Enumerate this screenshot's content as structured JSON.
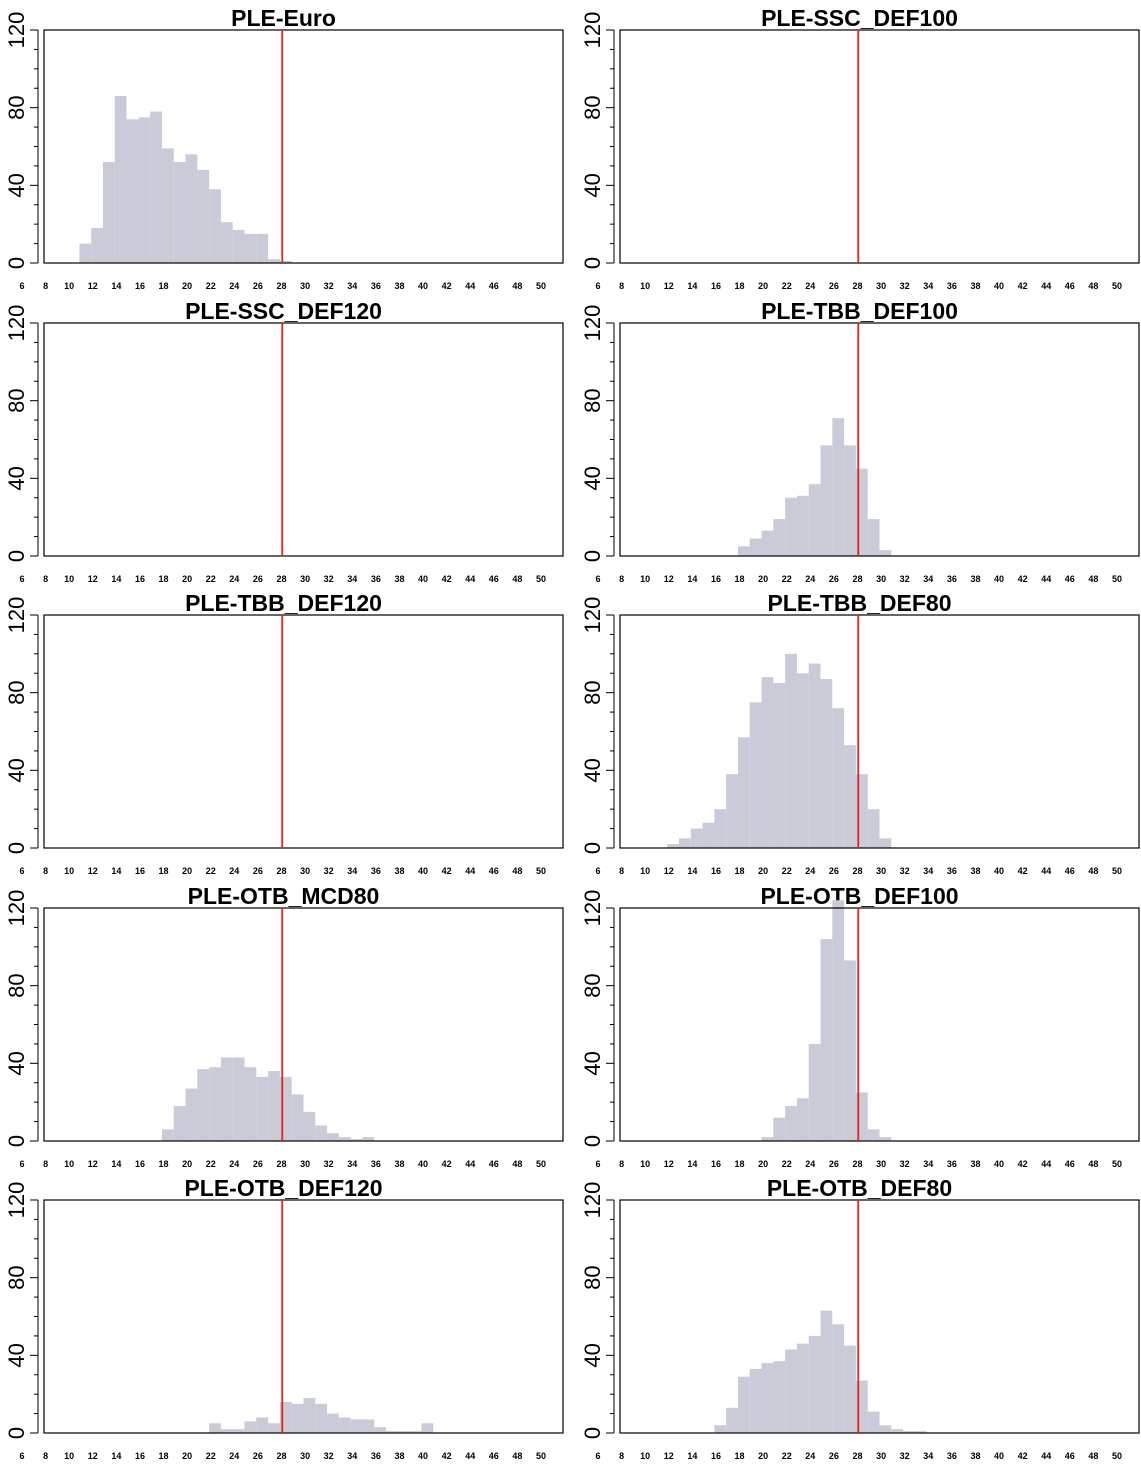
{
  "colors": {
    "bar": "#c9cbd8",
    "refline": "#e8201a",
    "axis": "#000000"
  },
  "chart_data": [
    {
      "type": "bar",
      "title": "PLE-Euro",
      "xlim": [
        6,
        50
      ],
      "bin_width": 1,
      "ylim": [
        0,
        120
      ],
      "yticks": [
        0,
        40,
        80,
        120
      ],
      "xticks": [
        6,
        8,
        10,
        12,
        14,
        16,
        18,
        20,
        22,
        24,
        26,
        28,
        30,
        32,
        34,
        36,
        38,
        40,
        42,
        44,
        46,
        48,
        50
      ],
      "refline_x": 26.2,
      "bins": [
        9,
        10,
        11,
        12,
        13,
        14,
        15,
        16,
        17,
        18,
        19,
        20,
        21,
        22,
        23,
        24,
        25,
        26
      ],
      "values": [
        10,
        18,
        52,
        86,
        74,
        75,
        78,
        59,
        52,
        56,
        48,
        38,
        21,
        17,
        15,
        15,
        2,
        1
      ]
    },
    {
      "type": "bar",
      "title": "PLE-SSC_DEF100",
      "xlim": [
        6,
        50
      ],
      "bin_width": 1,
      "ylim": [
        0,
        120
      ],
      "yticks": [
        0,
        40,
        80,
        120
      ],
      "xticks": [
        6,
        8,
        10,
        12,
        14,
        16,
        18,
        20,
        22,
        24,
        26,
        28,
        30,
        32,
        34,
        36,
        38,
        40,
        42,
        44,
        46,
        48,
        50
      ],
      "refline_x": 26.2,
      "bins": [],
      "values": []
    },
    {
      "type": "bar",
      "title": "PLE-SSC_DEF120",
      "xlim": [
        6,
        50
      ],
      "bin_width": 1,
      "ylim": [
        0,
        120
      ],
      "yticks": [
        0,
        40,
        80,
        120
      ],
      "xticks": [
        6,
        8,
        10,
        12,
        14,
        16,
        18,
        20,
        22,
        24,
        26,
        28,
        30,
        32,
        34,
        36,
        38,
        40,
        42,
        44,
        46,
        48,
        50
      ],
      "refline_x": 26.2,
      "bins": [],
      "values": []
    },
    {
      "type": "bar",
      "title": "PLE-TBB_DEF100",
      "xlim": [
        6,
        50
      ],
      "bin_width": 1,
      "ylim": [
        0,
        120
      ],
      "yticks": [
        0,
        40,
        80,
        120
      ],
      "xticks": [
        6,
        8,
        10,
        12,
        14,
        16,
        18,
        20,
        22,
        24,
        26,
        28,
        30,
        32,
        34,
        36,
        38,
        40,
        42,
        44,
        46,
        48,
        50
      ],
      "refline_x": 26.2,
      "bins": [
        16,
        17,
        18,
        19,
        20,
        21,
        22,
        23,
        24,
        25,
        26,
        27,
        28
      ],
      "values": [
        5,
        9,
        13,
        19,
        30,
        31,
        37,
        57,
        71,
        57,
        45,
        19,
        3
      ]
    },
    {
      "type": "bar",
      "title": "PLE-TBB_DEF120",
      "xlim": [
        6,
        50
      ],
      "bin_width": 1,
      "ylim": [
        0,
        120
      ],
      "yticks": [
        0,
        40,
        80,
        120
      ],
      "xticks": [
        6,
        8,
        10,
        12,
        14,
        16,
        18,
        20,
        22,
        24,
        26,
        28,
        30,
        32,
        34,
        36,
        38,
        40,
        42,
        44,
        46,
        48,
        50
      ],
      "refline_x": 26.2,
      "bins": [],
      "values": []
    },
    {
      "type": "bar",
      "title": "PLE-TBB_DEF80",
      "xlim": [
        6,
        50
      ],
      "bin_width": 1,
      "ylim": [
        0,
        120
      ],
      "yticks": [
        0,
        40,
        80,
        120
      ],
      "xticks": [
        6,
        8,
        10,
        12,
        14,
        16,
        18,
        20,
        22,
        24,
        26,
        28,
        30,
        32,
        34,
        36,
        38,
        40,
        42,
        44,
        46,
        48,
        50
      ],
      "refline_x": 26.2,
      "bins": [
        10,
        11,
        12,
        13,
        14,
        15,
        16,
        17,
        18,
        19,
        20,
        21,
        22,
        23,
        24,
        25,
        26,
        27,
        28
      ],
      "values": [
        2,
        5,
        10,
        13,
        20,
        38,
        57,
        75,
        88,
        85,
        100,
        90,
        95,
        87,
        72,
        53,
        38,
        20,
        5
      ]
    },
    {
      "type": "bar",
      "title": "PLE-OTB_MCD80",
      "xlim": [
        6,
        50
      ],
      "bin_width": 1,
      "ylim": [
        0,
        120
      ],
      "yticks": [
        0,
        40,
        80,
        120
      ],
      "xticks": [
        6,
        8,
        10,
        12,
        14,
        16,
        18,
        20,
        22,
        24,
        26,
        28,
        30,
        32,
        34,
        36,
        38,
        40,
        42,
        44,
        46,
        48,
        50
      ],
      "refline_x": 26.2,
      "bins": [
        16,
        17,
        18,
        19,
        20,
        21,
        22,
        23,
        24,
        25,
        26,
        27,
        28,
        29,
        30,
        31,
        32,
        33
      ],
      "values": [
        6,
        18,
        27,
        37,
        38,
        43,
        43,
        38,
        33,
        36,
        33,
        24,
        15,
        8,
        4,
        2,
        1,
        2
      ]
    },
    {
      "type": "bar",
      "title": "PLE-OTB_DEF100",
      "xlim": [
        6,
        50
      ],
      "bin_width": 1,
      "ylim": [
        0,
        120
      ],
      "yticks": [
        0,
        40,
        80,
        120
      ],
      "xticks": [
        6,
        8,
        10,
        12,
        14,
        16,
        18,
        20,
        22,
        24,
        26,
        28,
        30,
        32,
        34,
        36,
        38,
        40,
        42,
        44,
        46,
        48,
        50
      ],
      "refline_x": 26.2,
      "bins": [
        18,
        19,
        20,
        21,
        22,
        23,
        24,
        25,
        26,
        27,
        28
      ],
      "values": [
        2,
        12,
        18,
        22,
        50,
        104,
        125,
        93,
        25,
        6,
        2
      ]
    },
    {
      "type": "bar",
      "title": "PLE-OTB_DEF120",
      "xlim": [
        6,
        50
      ],
      "bin_width": 1,
      "ylim": [
        0,
        120
      ],
      "yticks": [
        0,
        40,
        80,
        120
      ],
      "xticks": [
        6,
        8,
        10,
        12,
        14,
        16,
        18,
        20,
        22,
        24,
        26,
        28,
        30,
        32,
        34,
        36,
        38,
        40,
        42,
        44,
        46,
        48,
        50
      ],
      "refline_x": 26.2,
      "bins": [
        20,
        21,
        22,
        23,
        24,
        25,
        26,
        27,
        28,
        29,
        30,
        31,
        32,
        33,
        34,
        35,
        36,
        37,
        38
      ],
      "values": [
        5,
        2,
        2,
        6,
        8,
        5,
        16,
        15,
        18,
        15,
        10,
        8,
        7,
        7,
        3,
        1,
        1,
        1,
        5
      ]
    },
    {
      "type": "bar",
      "title": "PLE-OTB_DEF80",
      "xlim": [
        6,
        50
      ],
      "bin_width": 1,
      "ylim": [
        0,
        120
      ],
      "yticks": [
        0,
        40,
        80,
        120
      ],
      "xticks": [
        6,
        8,
        10,
        12,
        14,
        16,
        18,
        20,
        22,
        24,
        26,
        28,
        30,
        32,
        34,
        36,
        38,
        40,
        42,
        44,
        46,
        48,
        50
      ],
      "refline_x": 26.2,
      "bins": [
        14,
        15,
        16,
        17,
        18,
        19,
        20,
        21,
        22,
        23,
        24,
        25,
        26,
        27,
        28,
        29,
        30,
        31
      ],
      "values": [
        4,
        13,
        29,
        33,
        36,
        37,
        43,
        46,
        50,
        63,
        56,
        45,
        27,
        11,
        4,
        2,
        1,
        1
      ]
    }
  ]
}
